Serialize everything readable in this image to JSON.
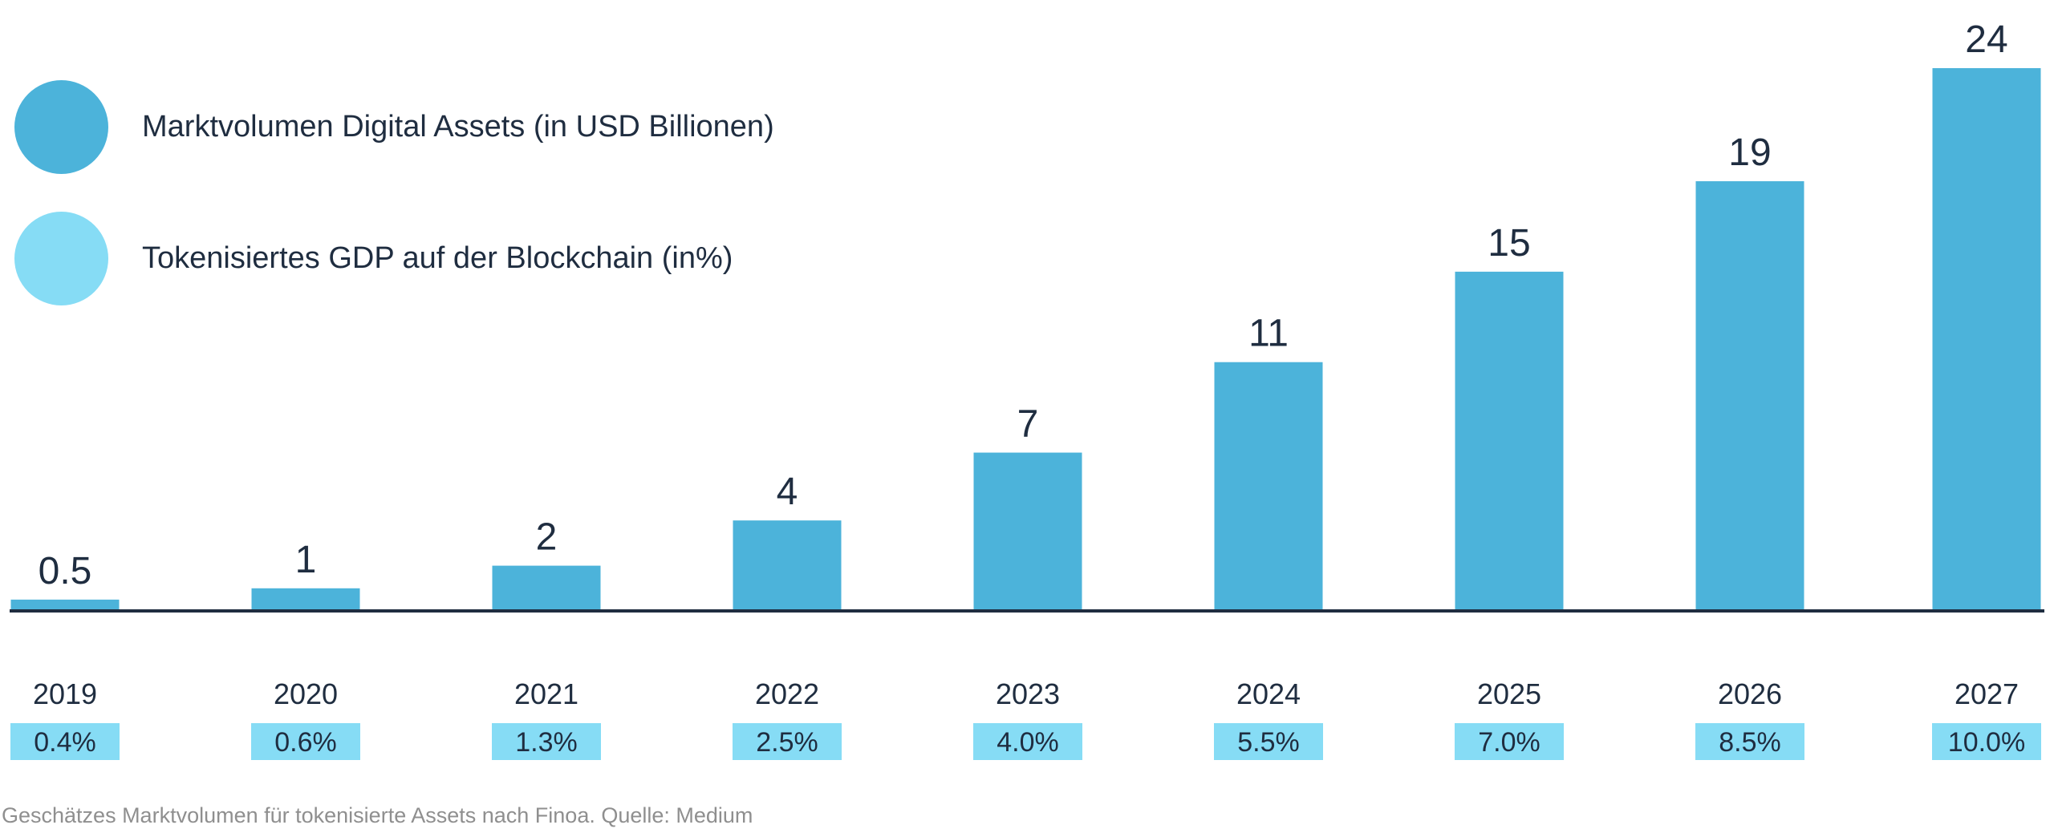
{
  "chart_data": {
    "type": "bar",
    "categories": [
      "2019",
      "2020",
      "2021",
      "2022",
      "2023",
      "2024",
      "2025",
      "2026",
      "2027"
    ],
    "series": [
      {
        "name": "Marktvolumen Digital Assets (in USD Billionen)",
        "values": [
          0.5,
          1,
          2,
          4,
          7,
          11,
          15,
          19,
          24
        ],
        "labels": [
          "0.5",
          "1",
          "2",
          "4",
          "7",
          "11",
          "15",
          "19",
          "24"
        ],
        "color": "#4cb3da"
      },
      {
        "name": "Tokenisiertes GDP auf der Blockchain (in%)",
        "values": [
          0.4,
          0.6,
          1.3,
          2.5,
          4.0,
          5.5,
          7.0,
          8.5,
          10.0
        ],
        "labels": [
          "0.4%",
          "0.6%",
          "1.3%",
          "2.5%",
          "4.0%",
          "5.5%",
          "7.0%",
          "8.5%",
          "10.0%"
        ],
        "color": "#86dcf5"
      }
    ],
    "ylim": [
      0,
      24
    ],
    "grid": false,
    "legend_placement": "top-left"
  },
  "caption": "Geschätzes Marktvolumen für tokenisierte Assets nach Finoa. Quelle: Medium",
  "colors": {
    "text": "#1f2d40",
    "axis": "#1f2d40",
    "caption": "#8f8f8f"
  }
}
